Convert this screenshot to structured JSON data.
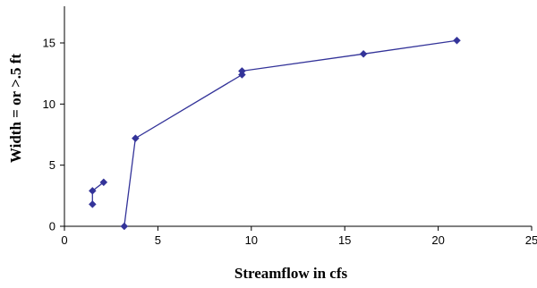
{
  "chart_data": {
    "type": "line",
    "title": "",
    "xlabel": "Streamflow in cfs",
    "ylabel": "Width = or >.5 ft",
    "xlim": [
      0,
      25
    ],
    "ylim": [
      0,
      18
    ],
    "x_ticks": [
      0,
      5,
      10,
      15,
      20,
      25
    ],
    "y_ticks": [
      0,
      5,
      10,
      15
    ],
    "grid": false,
    "legend": "none",
    "series": [
      {
        "color": "#333399",
        "segments": [
          [
            {
              "x": 1.5,
              "y": 1.8
            },
            {
              "x": 1.5,
              "y": 2.9
            }
          ],
          [
            {
              "x": 1.5,
              "y": 2.9
            },
            {
              "x": 2.1,
              "y": 3.6
            }
          ],
          [
            {
              "x": 3.2,
              "y": 0
            },
            {
              "x": 3.8,
              "y": 7.2
            },
            {
              "x": 9.5,
              "y": 12.4
            },
            {
              "x": 9.5,
              "y": 12.7
            },
            {
              "x": 16.0,
              "y": 14.1
            },
            {
              "x": 21.0,
              "y": 15.2
            }
          ]
        ]
      }
    ]
  }
}
